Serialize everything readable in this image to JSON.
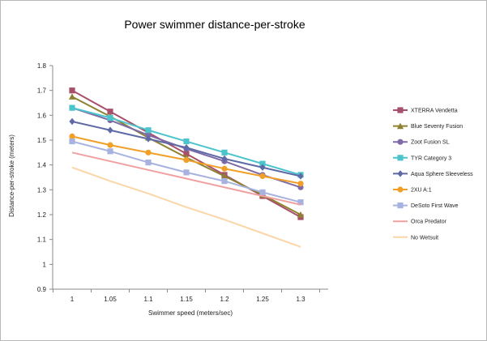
{
  "chart_data": {
    "type": "line",
    "title": "Power swimmer distance-per-stroke",
    "xlabel": "Swimmer speed (meters/sec)",
    "ylabel": "Distance-per-stroke (meters)",
    "x": [
      1,
      1.05,
      1.1,
      1.15,
      1.2,
      1.25,
      1.3
    ],
    "x_tick_labels": [
      "1",
      "1.05",
      "1.1",
      "1.15",
      "1.2",
      "1.25",
      "1.3"
    ],
    "ylim": [
      0.9,
      1.8
    ],
    "y_ticks": [
      0.9,
      1.0,
      1.1,
      1.2,
      1.3,
      1.4,
      1.5,
      1.6,
      1.7,
      1.8
    ],
    "y_tick_labels": [
      "0.9",
      "1",
      "1.1",
      "1.2",
      "1.3",
      "1.4",
      "1.5",
      "1.6",
      "1.7",
      "1.8"
    ],
    "grid": false,
    "legend_position": "right",
    "series": [
      {
        "name": "XTERRA Vendetta",
        "color": "#a8506a",
        "marker": "square",
        "values": [
          1.7,
          1.615,
          1.53,
          1.445,
          1.36,
          1.275,
          1.19
        ]
      },
      {
        "name": "Blue Seventy Fusion",
        "color": "#8e8232",
        "marker": "triangle",
        "values": [
          1.675,
          1.595,
          1.51,
          1.43,
          1.355,
          1.28,
          1.2
        ]
      },
      {
        "name": "Zoot Fusion SL",
        "color": "#7e6aa6",
        "marker": "circle",
        "values": [
          1.63,
          1.58,
          1.52,
          1.465,
          1.415,
          1.36,
          1.31
        ]
      },
      {
        "name": "TYR Category 3",
        "color": "#4cc4cc",
        "marker": "square",
        "values": [
          1.63,
          1.59,
          1.54,
          1.495,
          1.45,
          1.405,
          1.36
        ]
      },
      {
        "name": "Aqua Sphere Sleeveless",
        "color": "#5e6aa6",
        "marker": "diamond",
        "values": [
          1.575,
          1.54,
          1.505,
          1.47,
          1.425,
          1.39,
          1.355
        ]
      },
      {
        "name": "2XU A:1",
        "color": "#f0a028",
        "marker": "circle",
        "values": [
          1.515,
          1.48,
          1.45,
          1.42,
          1.385,
          1.355,
          1.325
        ]
      },
      {
        "name": "DeSoto First Wave",
        "color": "#a8b2e0",
        "marker": "square",
        "values": [
          1.495,
          1.455,
          1.41,
          1.37,
          1.335,
          1.29,
          1.25
        ]
      },
      {
        "name": "Orca Predator",
        "color": "#f0a0a0",
        "marker": "none",
        "values": [
          1.45,
          1.415,
          1.38,
          1.345,
          1.31,
          1.275,
          1.24
        ]
      },
      {
        "name": "No Wetsuit",
        "color": "#fad6a8",
        "marker": "none",
        "values": [
          1.39,
          1.335,
          1.285,
          1.23,
          1.18,
          1.125,
          1.07
        ]
      }
    ]
  }
}
